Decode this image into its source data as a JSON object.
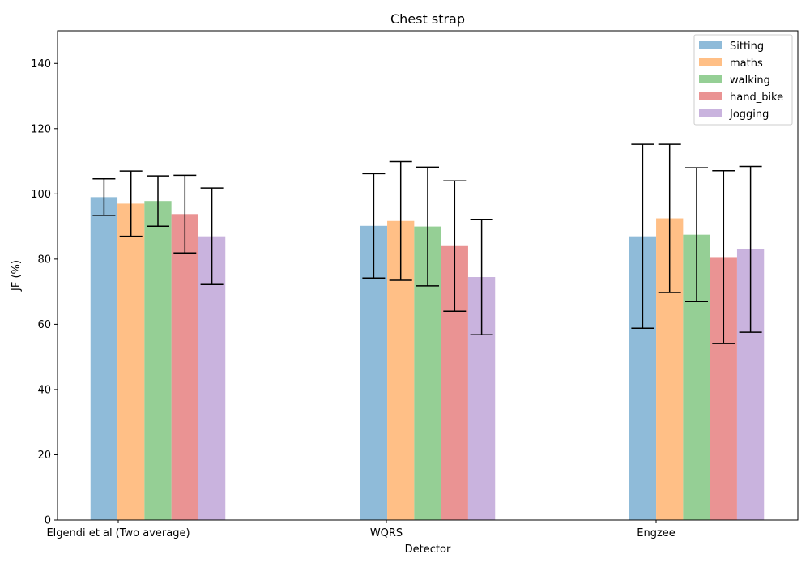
{
  "chart_data": {
    "type": "bar",
    "title": "Chest strap",
    "xlabel": "Detector",
    "ylabel": "JF (%)",
    "ylim": [
      0,
      150
    ],
    "yticks": [
      0,
      20,
      40,
      60,
      80,
      100,
      120,
      140
    ],
    "grid": false,
    "legend_position": "top-right",
    "categories": [
      "Elgendi et al (Two average)",
      "WQRS",
      "Engzee"
    ],
    "series": [
      {
        "name": "Sitting",
        "color": "#8fbbd9",
        "values": [
          99.0,
          90.2,
          87.0
        ],
        "err": [
          5.6,
          16.0,
          28.2
        ]
      },
      {
        "name": "maths",
        "color": "#ffbf86",
        "values": [
          97.0,
          91.7,
          92.5
        ],
        "err": [
          10.0,
          18.2,
          22.7
        ]
      },
      {
        "name": "walking",
        "color": "#95cf95",
        "values": [
          97.8,
          90.0,
          87.5
        ],
        "err": [
          7.7,
          18.2,
          20.5
        ]
      },
      {
        "name": "hand_bike",
        "color": "#ea9393",
        "values": [
          93.8,
          84.0,
          80.6
        ],
        "err": [
          11.9,
          20.0,
          26.5
        ]
      },
      {
        "name": "Jogging",
        "color": "#c9b3de",
        "values": [
          87.0,
          74.5,
          83.0
        ],
        "err": [
          14.8,
          17.7,
          25.4
        ]
      }
    ]
  }
}
